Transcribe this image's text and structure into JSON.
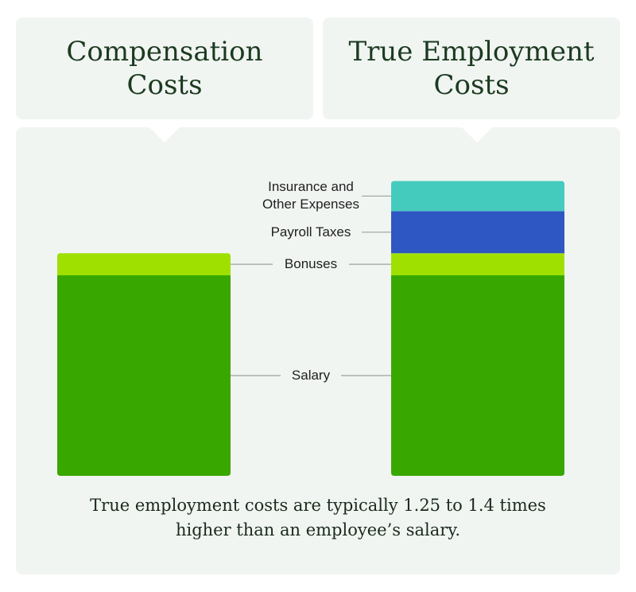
{
  "chart_data": {
    "type": "bar",
    "stacked": true,
    "categories": [
      "Compensation Costs",
      "True Employment Costs"
    ],
    "category_title_lines": [
      [
        "Compensation",
        "Costs"
      ],
      [
        "True Employment",
        "Costs"
      ]
    ],
    "series": [
      {
        "name": "Salary",
        "values": [
          1.0,
          1.0
        ],
        "color": "#38a800"
      },
      {
        "name": "Bonuses",
        "values": [
          0.11,
          0.11
        ],
        "color": "#9fe000"
      },
      {
        "name": "Payroll Taxes",
        "values": [
          0,
          0.21
        ],
        "color": "#2f57c4"
      },
      {
        "name": "Insurance and Other Expenses",
        "values": [
          0,
          0.15
        ],
        "color": "#45cbbd"
      }
    ],
    "label_lines": {
      "Salary": [
        "Salary"
      ],
      "Bonuses": [
        "Bonuses"
      ],
      "Payroll Taxes": [
        "Payroll Taxes"
      ],
      "Insurance and Other Expenses": [
        "Insurance and",
        "Other Expenses"
      ]
    },
    "caption_lines": [
      "True employment costs are typically 1.25 to 1.4 times",
      "higher than an employee’s salary."
    ]
  },
  "colors": {
    "panel": "#f1f5f2",
    "text": "#1c3a20",
    "leader": "#9aa29c"
  }
}
